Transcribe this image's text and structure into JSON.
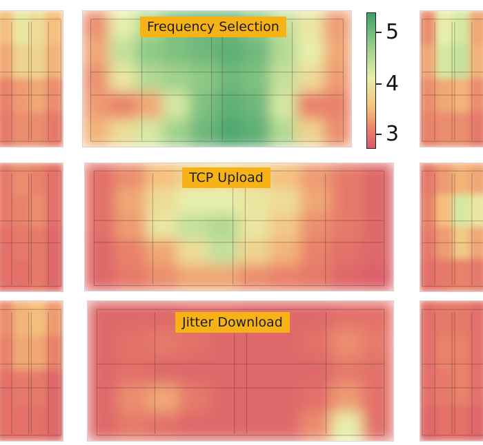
{
  "chart_data": {
    "type": "heatmap",
    "colorbar": {
      "ticks": [
        "5",
        "4",
        "3"
      ],
      "tick_values": [
        5,
        4,
        3
      ],
      "range": [
        2.8,
        5.3
      ],
      "colors": [
        "#3f9e6a",
        "#8fca86",
        "#e7efaa",
        "#f5c07e",
        "#e9826a",
        "#d9586a"
      ]
    },
    "panels": [
      {
        "title": "Frequency Selection",
        "grid": [
          [
            3.4,
            4.3,
            4.6,
            4.9,
            5.0,
            5.0,
            4.8,
            4.5,
            4.2,
            3.5
          ],
          [
            3.6,
            4.5,
            4.8,
            4.9,
            5.0,
            5.1,
            5.0,
            4.6,
            4.3,
            3.6
          ],
          [
            3.4,
            4.2,
            4.6,
            4.7,
            4.8,
            5.0,
            4.9,
            4.5,
            4.1,
            3.5
          ],
          [
            3.5,
            3.3,
            3.6,
            4.4,
            4.9,
            5.1,
            5.0,
            4.4,
            3.3,
            3.3
          ],
          [
            3.7,
            4.1,
            4.4,
            4.7,
            5.0,
            5.2,
            5.1,
            4.6,
            4.0,
            3.4
          ]
        ]
      },
      {
        "title": "TCP Upload",
        "grid": [
          [
            3.1,
            3.4,
            3.8,
            4.0,
            4.1,
            4.0,
            3.8,
            3.5,
            3.2,
            3.0
          ],
          [
            3.1,
            3.6,
            4.1,
            4.3,
            4.3,
            4.2,
            4.1,
            3.6,
            3.2,
            3.0
          ],
          [
            3.1,
            3.5,
            4.2,
            4.5,
            4.6,
            4.2,
            3.9,
            3.4,
            3.2,
            3.0
          ],
          [
            3.0,
            3.3,
            3.6,
            4.1,
            4.5,
            4.0,
            3.7,
            3.3,
            3.1,
            3.0
          ],
          [
            3.0,
            3.2,
            3.4,
            3.6,
            3.6,
            3.4,
            3.3,
            3.2,
            3.0,
            2.9
          ]
        ]
      },
      {
        "title": "Jitter Download",
        "grid": [
          [
            3.0,
            3.0,
            3.0,
            3.1,
            3.1,
            3.0,
            3.0,
            3.0,
            3.1,
            3.1
          ],
          [
            3.0,
            3.1,
            3.2,
            3.1,
            3.0,
            3.0,
            3.0,
            3.1,
            3.4,
            3.2
          ],
          [
            3.0,
            3.1,
            3.0,
            3.0,
            3.0,
            3.0,
            3.0,
            3.0,
            3.2,
            3.1
          ],
          [
            3.0,
            3.4,
            3.6,
            3.2,
            3.0,
            3.0,
            3.0,
            3.1,
            3.5,
            3.1
          ],
          [
            3.0,
            3.2,
            3.1,
            3.0,
            3.0,
            3.0,
            3.0,
            3.4,
            4.3,
            3.1
          ]
        ]
      },
      {
        "title": "",
        "grid": [
          [
            3.8,
            4.2,
            4.1,
            3.8
          ],
          [
            3.6,
            4.0,
            4.0,
            3.7
          ],
          [
            3.3,
            3.5,
            3.6,
            3.4
          ],
          [
            3.2,
            3.4,
            3.4,
            3.2
          ]
        ]
      },
      {
        "title": "",
        "grid": [
          [
            3.2,
            3.4,
            3.3,
            3.1
          ],
          [
            3.2,
            3.3,
            3.4,
            3.1
          ],
          [
            3.1,
            3.2,
            3.2,
            3.0
          ],
          [
            3.1,
            3.1,
            3.2,
            3.0
          ]
        ]
      },
      {
        "title": "",
        "grid": [
          [
            3.4,
            3.7,
            3.8,
            3.5
          ],
          [
            3.3,
            3.6,
            3.6,
            3.3
          ],
          [
            3.1,
            3.2,
            3.2,
            3.0
          ],
          [
            3.1,
            3.1,
            3.1,
            3.0
          ]
        ]
      },
      {
        "title": "",
        "grid": [
          [
            3.4,
            4.3,
            4.4,
            3.6
          ],
          [
            3.6,
            4.4,
            4.5,
            3.7
          ],
          [
            3.4,
            3.6,
            3.7,
            3.4
          ],
          [
            3.3,
            3.4,
            3.4,
            3.2
          ]
        ]
      },
      {
        "title": "",
        "grid": [
          [
            3.2,
            3.5,
            3.7,
            3.6
          ],
          [
            3.3,
            3.8,
            4.4,
            4.2
          ],
          [
            3.2,
            3.5,
            3.9,
            3.6
          ],
          [
            3.1,
            3.2,
            3.3,
            3.2
          ]
        ]
      },
      {
        "title": "",
        "grid": [
          [
            3.1,
            3.2,
            3.2,
            3.1
          ],
          [
            3.1,
            3.3,
            3.3,
            3.1
          ],
          [
            3.1,
            3.2,
            3.3,
            3.1
          ],
          [
            3.0,
            3.1,
            3.1,
            3.0
          ]
        ]
      }
    ]
  }
}
